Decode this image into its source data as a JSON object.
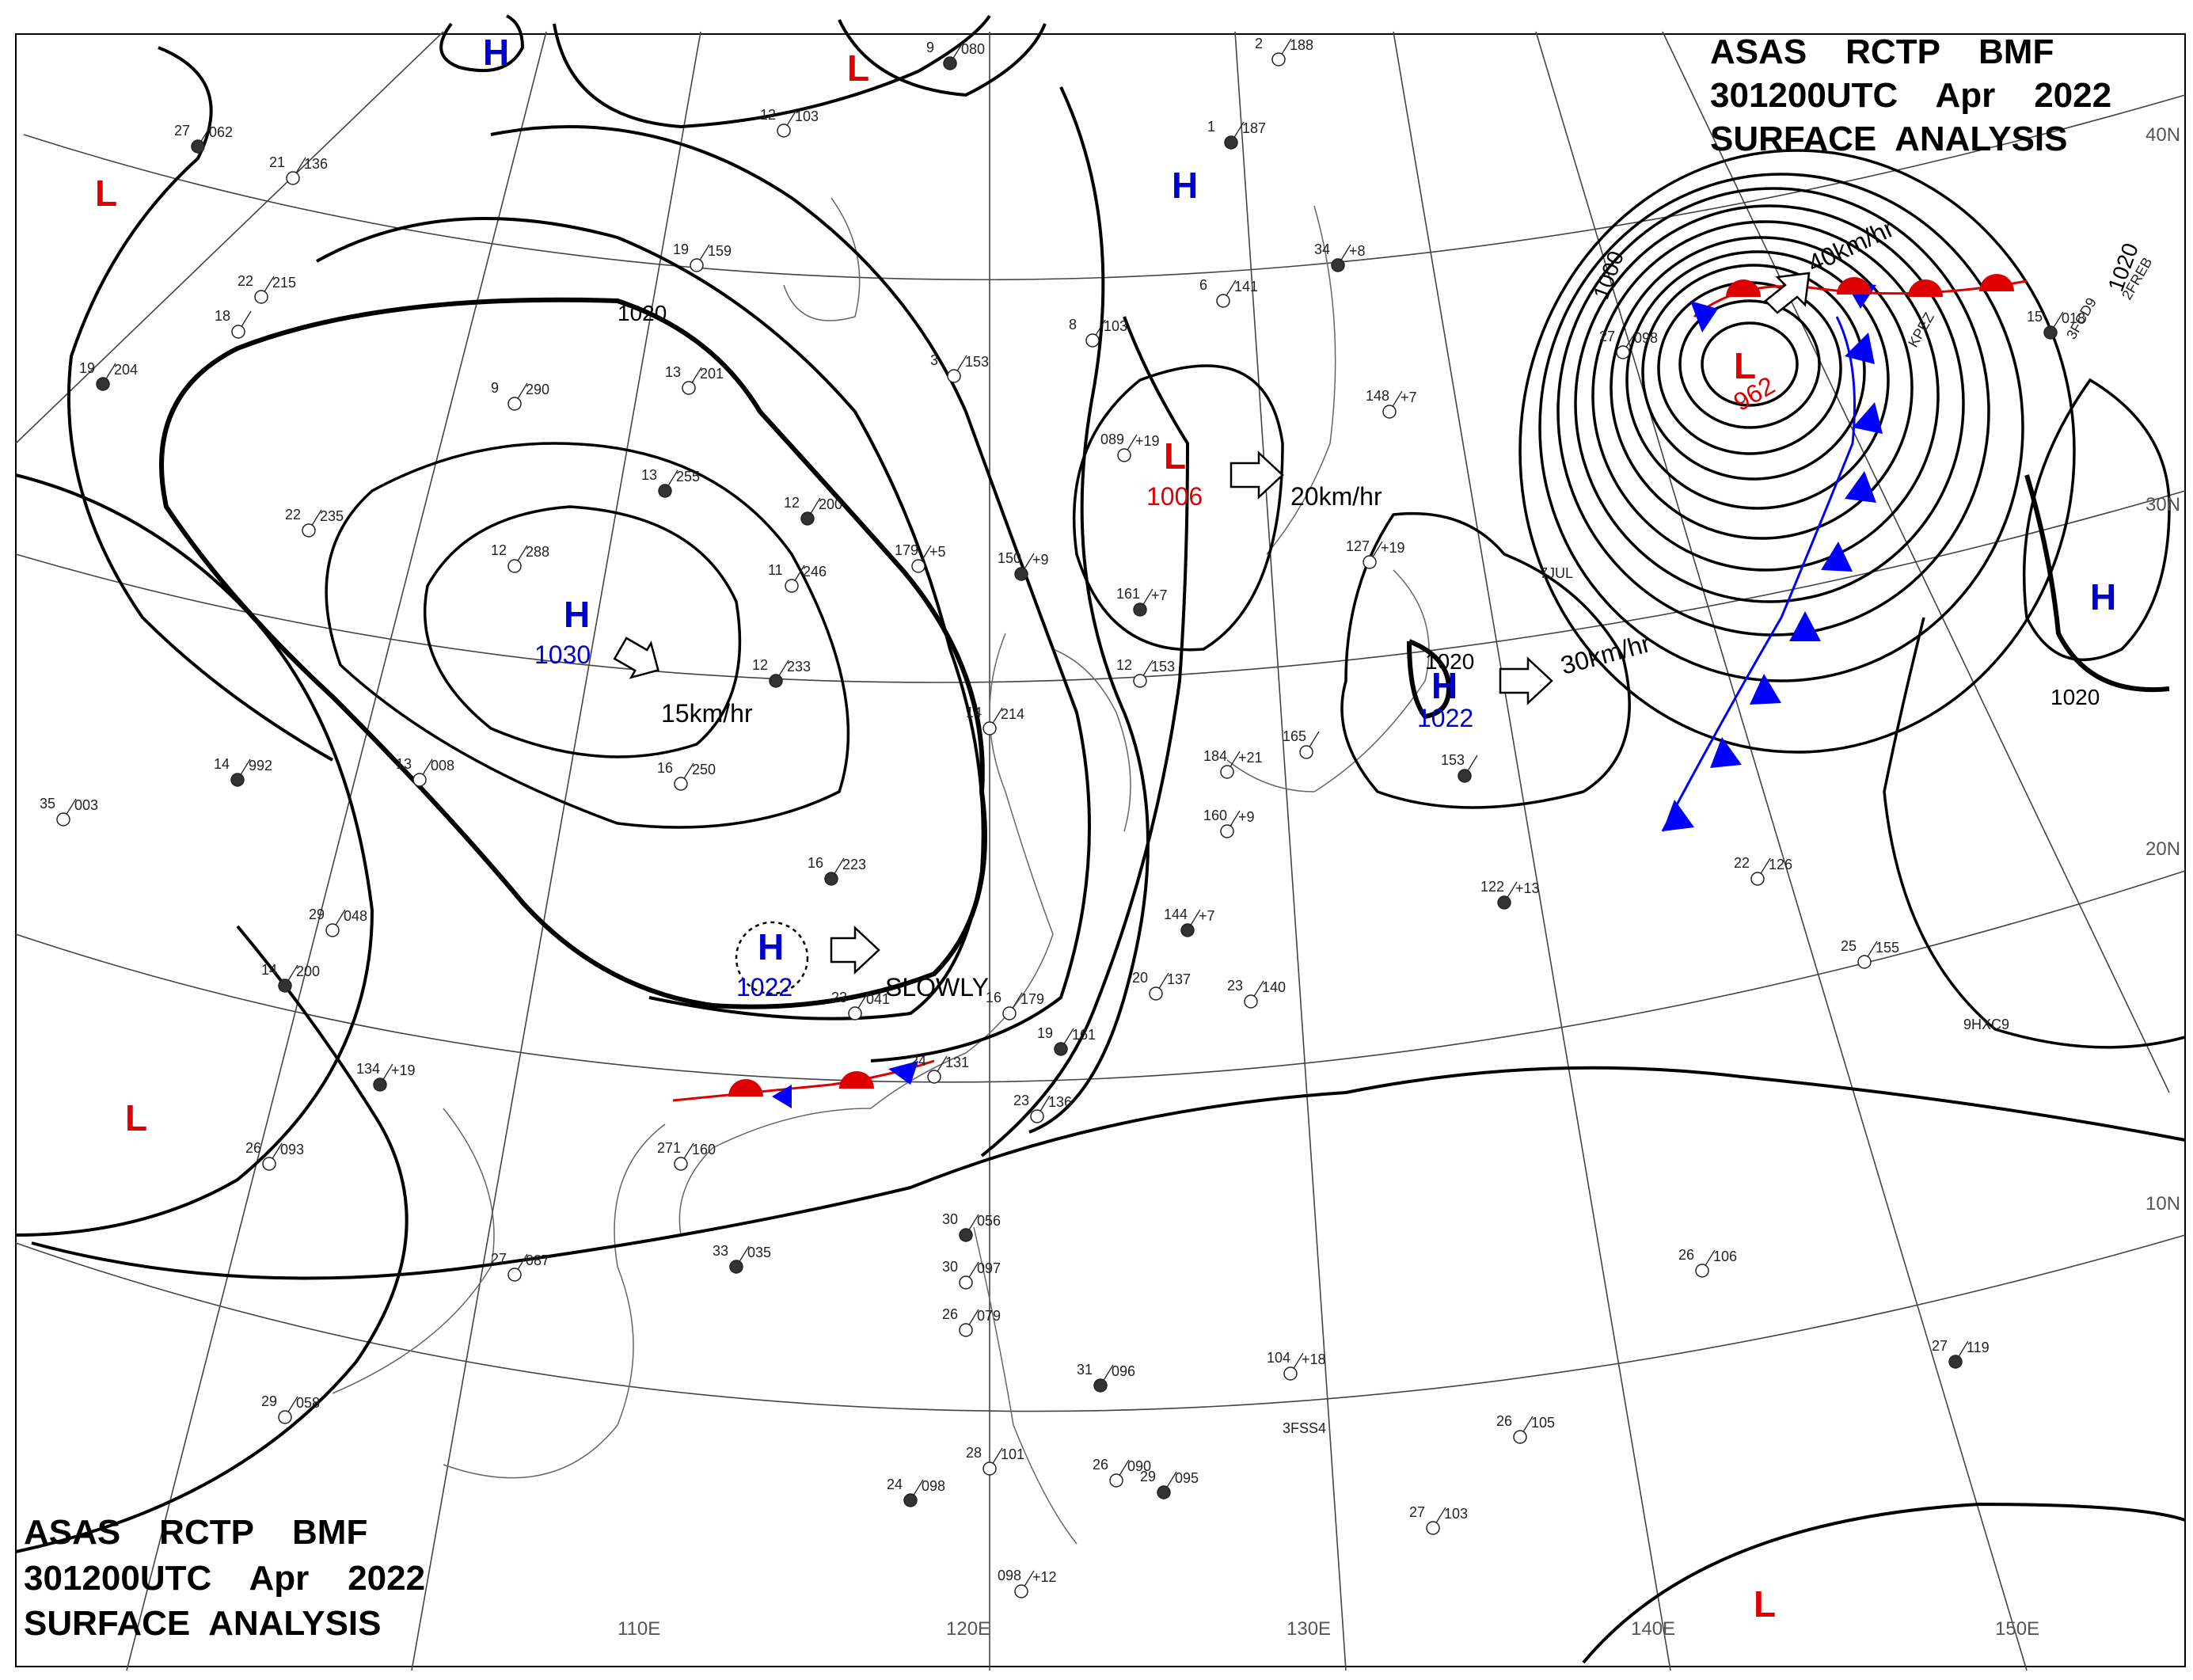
{
  "header_top": {
    "line1": "ASAS    RCTP    BMF",
    "line2": "301200UTC    Apr    2022",
    "line3": "SURFACE  ANALYSIS"
  },
  "header_bottom": {
    "line1": "ASAS    RCTP    BMF",
    "line2": "301200UTC    Apr    2022",
    "line3": "SURFACE  ANALYSIS"
  },
  "longitude_labels": [
    "110E",
    "120E",
    "130E",
    "140E",
    "150E"
  ],
  "latitude_labels": [
    "40N",
    "30N",
    "20N",
    "10N"
  ],
  "isobar_labels": [
    "1020",
    "1000",
    "1020",
    "1020",
    "1020"
  ],
  "systems": [
    {
      "sym": "H",
      "value": "1030",
      "color": "#0000cc"
    },
    {
      "sym": "H",
      "value": "1022",
      "color": "#0000cc"
    },
    {
      "sym": "H",
      "value": "1022",
      "color": "#0000cc"
    },
    {
      "sym": "L",
      "value": "1006",
      "color": "#dd0000"
    },
    {
      "sym": "L",
      "value": "962",
      "color": "#dd0000"
    },
    {
      "sym": "H",
      "value": "",
      "color": "#0000cc"
    },
    {
      "sym": "H",
      "value": "",
      "color": "#0000cc"
    },
    {
      "sym": "H",
      "value": "",
      "color": "#0000cc"
    },
    {
      "sym": "L",
      "value": "",
      "color": "#dd0000"
    },
    {
      "sym": "L",
      "value": "",
      "color": "#dd0000"
    },
    {
      "sym": "L",
      "value": "",
      "color": "#dd0000"
    },
    {
      "sym": "L",
      "value": "",
      "color": "#dd0000"
    }
  ],
  "motion_labels": [
    "15km/hr",
    "SLOWLY",
    "20km/hr",
    "30km/hr",
    "40km/hr"
  ],
  "stations": [
    {
      "label": "27",
      "value": "062"
    },
    {
      "label": "21",
      "value": "136"
    },
    {
      "label": "12",
      "value": "103"
    },
    {
      "label": "9",
      "value": "080"
    },
    {
      "label": "19",
      "value": "159"
    },
    {
      "label": "22",
      "value": "215"
    },
    {
      "label": "19",
      "value": "204"
    },
    {
      "label": "9",
      "value": "290"
    },
    {
      "label": "13",
      "value": "201"
    },
    {
      "label": "13",
      "value": "255"
    },
    {
      "label": "12",
      "value": "288"
    },
    {
      "label": "22",
      "value": "235"
    },
    {
      "label": "12",
      "value": "200"
    },
    {
      "label": "11",
      "value": "246"
    },
    {
      "label": "179",
      "value": "+5"
    },
    {
      "label": "150",
      "value": "+9"
    },
    {
      "label": "3",
      "value": "153"
    },
    {
      "label": "8",
      "value": "103"
    },
    {
      "label": "1",
      "value": "187"
    },
    {
      "label": "2",
      "value": "188"
    },
    {
      "label": "6",
      "value": "141"
    },
    {
      "label": "34",
      "value": "+8"
    },
    {
      "label": "148",
      "value": "+7"
    },
    {
      "label": "089",
      "value": "+19"
    },
    {
      "label": "12",
      "value": "233"
    },
    {
      "label": "16",
      "value": "250"
    },
    {
      "label": "13",
      "value": "008"
    },
    {
      "label": "14",
      "value": "992"
    },
    {
      "label": "35",
      "value": "003"
    },
    {
      "label": "29",
      "value": "048"
    },
    {
      "label": "16",
      "value": "223"
    },
    {
      "label": "14",
      "value": "214"
    },
    {
      "label": "12",
      "value": "153"
    },
    {
      "label": "161",
      "value": "+7"
    },
    {
      "label": "127",
      "value": "+19"
    },
    {
      "label": "165",
      "value": ""
    },
    {
      "label": "153",
      "value": ""
    },
    {
      "label": "184",
      "value": "+21"
    },
    {
      "label": "160",
      "value": "+9"
    },
    {
      "label": "144",
      "value": "+7"
    },
    {
      "label": "20",
      "value": "137"
    },
    {
      "label": "23",
      "value": "140"
    },
    {
      "label": "122",
      "value": "+13"
    },
    {
      "label": "22",
      "value": "126"
    },
    {
      "label": "25",
      "value": "155"
    },
    {
      "label": "14",
      "value": "200"
    },
    {
      "label": "23",
      "value": "041"
    },
    {
      "label": "16",
      "value": "179"
    },
    {
      "label": "19",
      "value": "161"
    },
    {
      "label": "24",
      "value": "131"
    },
    {
      "label": "23",
      "value": "136"
    },
    {
      "label": "134",
      "value": "+19"
    },
    {
      "label": "271",
      "value": "160"
    },
    {
      "label": "26",
      "value": "093"
    },
    {
      "label": "33",
      "value": "035"
    },
    {
      "label": "27",
      "value": "087"
    },
    {
      "label": "29",
      "value": "058"
    },
    {
      "label": "30",
      "value": "056"
    },
    {
      "label": "30",
      "value": "097"
    },
    {
      "label": "26",
      "value": "079"
    },
    {
      "label": "31",
      "value": "096"
    },
    {
      "label": "104",
      "value": "+18"
    },
    {
      "label": "26",
      "value": "106"
    },
    {
      "label": "27",
      "value": "119"
    },
    {
      "label": "26",
      "value": "105"
    },
    {
      "label": "27",
      "value": "103"
    },
    {
      "label": "24",
      "value": "098"
    },
    {
      "label": "28",
      "value": "101"
    },
    {
      "label": "26",
      "value": "090"
    },
    {
      "label": "29",
      "value": "095"
    },
    {
      "label": "098",
      "value": "+12"
    },
    {
      "label": "27",
      "value": "098"
    },
    {
      "label": "15",
      "value": "018"
    },
    {
      "label": "18",
      "value": ""
    }
  ],
  "ship_ids": [
    "9HXC9",
    "3FSS4",
    "3FCD9",
    "2FREB",
    "7JUL",
    "KPEZ"
  ]
}
